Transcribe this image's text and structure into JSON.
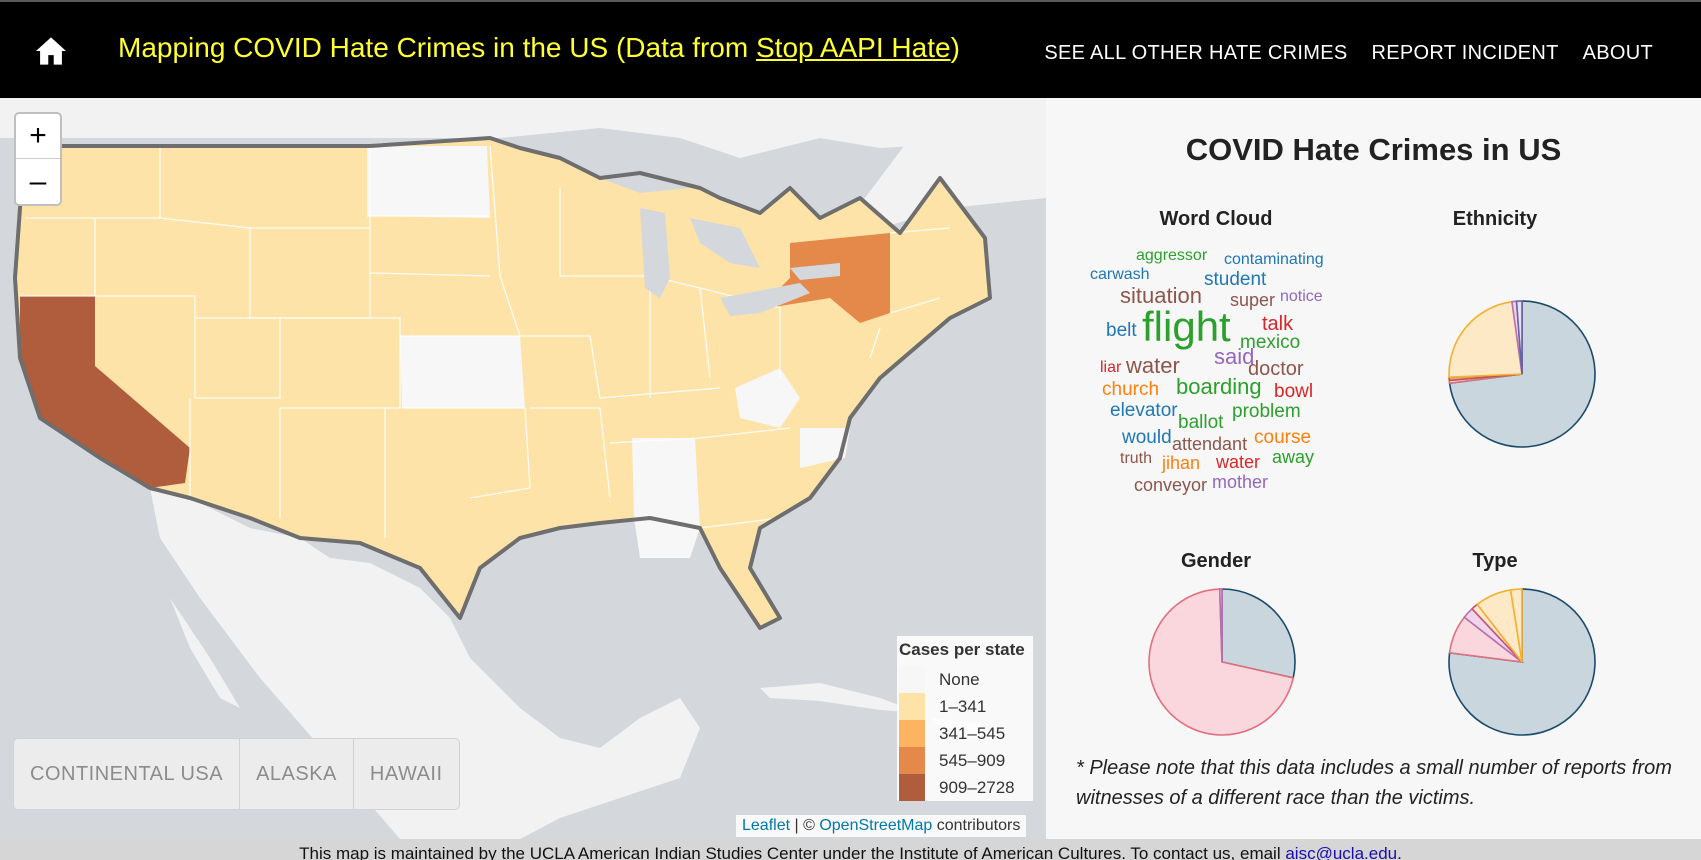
{
  "nav": {
    "title_prefix": "Mapping COVID Hate Crimes in the US (Data from ",
    "title_link": "Stop AAPI Hate",
    "title_suffix": ")",
    "links": [
      "SEE ALL OTHER HATE CRIMES",
      "REPORT INCIDENT",
      "ABOUT"
    ],
    "home_icon": "home-icon"
  },
  "map": {
    "zoom_in": "+",
    "zoom_out": "–",
    "regions": [
      "CONTINENTAL USA",
      "ALASKA",
      "HAWAII"
    ],
    "legend": {
      "title": "Cases per state",
      "items": [
        {
          "label": "None",
          "color": "#f7f7f7"
        },
        {
          "label": "1–341",
          "color": "#fde3a7"
        },
        {
          "label": "341–545",
          "color": "#fdb462"
        },
        {
          "label": "545–909",
          "color": "#e5894a"
        },
        {
          "label": "909–2728",
          "color": "#b05d3e"
        }
      ]
    },
    "attribution": {
      "leaflet": "Leaflet",
      "sep": " | © ",
      "osm": "OpenStreetMap",
      "suffix": " contributors"
    }
  },
  "panel": {
    "title": "COVID Hate Crimes in US",
    "wordcloud_title": "Word Cloud",
    "ethnicity_title": "Ethnicity",
    "gender_title": "Gender",
    "type_title": "Type",
    "words": [
      {
        "text": "aggressor",
        "color": "#2ca02c",
        "size": 16
      },
      {
        "text": "contaminating",
        "color": "#1f77b4",
        "size": 16
      },
      {
        "text": "carwash",
        "color": "#1f77b4",
        "size": 16
      },
      {
        "text": "student",
        "color": "#1f77b4",
        "size": 19
      },
      {
        "text": "situation",
        "color": "#8c564b",
        "size": 22
      },
      {
        "text": "super",
        "color": "#8c564b",
        "size": 18
      },
      {
        "text": "notice",
        "color": "#9467bd",
        "size": 16
      },
      {
        "text": "belt",
        "color": "#1f77b4",
        "size": 19
      },
      {
        "text": "flight",
        "color": "#2ca02c",
        "size": 42
      },
      {
        "text": "talk",
        "color": "#d62728",
        "size": 20
      },
      {
        "text": "mexico",
        "color": "#2ca02c",
        "size": 19
      },
      {
        "text": "said",
        "color": "#9467bd",
        "size": 22
      },
      {
        "text": "liar",
        "color": "#d62728",
        "size": 16
      },
      {
        "text": "water",
        "color": "#8c564b",
        "size": 22
      },
      {
        "text": "doctor",
        "color": "#8c564b",
        "size": 20
      },
      {
        "text": "church",
        "color": "#ff7f0e",
        "size": 19
      },
      {
        "text": "boarding",
        "color": "#2ca02c",
        "size": 22
      },
      {
        "text": "bowl",
        "color": "#d62728",
        "size": 19
      },
      {
        "text": "elevator",
        "color": "#1f77b4",
        "size": 19
      },
      {
        "text": "ballot",
        "color": "#2ca02c",
        "size": 19
      },
      {
        "text": "problem",
        "color": "#2ca02c",
        "size": 19
      },
      {
        "text": "would",
        "color": "#1f77b4",
        "size": 19
      },
      {
        "text": "attendant",
        "color": "#8c564b",
        "size": 18
      },
      {
        "text": "course",
        "color": "#ff7f0e",
        "size": 19
      },
      {
        "text": "truth",
        "color": "#8c564b",
        "size": 16
      },
      {
        "text": "jihan",
        "color": "#ff7f0e",
        "size": 18
      },
      {
        "text": "water",
        "color": "#d62728",
        "size": 18
      },
      {
        "text": "away",
        "color": "#2ca02c",
        "size": 18
      },
      {
        "text": "conveyor",
        "color": "#8c564b",
        "size": 18
      },
      {
        "text": "mother",
        "color": "#9467bd",
        "size": 18
      }
    ],
    "ethnicity": [
      {
        "value": 73,
        "fill": "#c9d6de",
        "stroke": "#1b4a6b"
      },
      {
        "value": 0.6,
        "fill": "#f9d7dc",
        "stroke": "#e0707e"
      },
      {
        "value": 0.7,
        "fill": "#e7a09a",
        "stroke": "#b85a4a"
      },
      {
        "value": 23.5,
        "fill": "#fde9c6",
        "stroke": "#f5b02e"
      },
      {
        "value": 1.0,
        "fill": "#efd4ea",
        "stroke": "#b670b0"
      },
      {
        "value": 1.2,
        "fill": "#e3e3f3",
        "stroke": "#6a62a6"
      }
    ],
    "gender": [
      {
        "value": 28.5,
        "fill": "#c9d6de",
        "stroke": "#1b4a6b"
      },
      {
        "value": 71,
        "fill": "#f9d7dc",
        "stroke": "#e0707e"
      },
      {
        "value": 0.5,
        "fill": "#efd4ea",
        "stroke": "#b670b0"
      }
    ],
    "type": [
      {
        "value": 77,
        "fill": "#c9d6de",
        "stroke": "#1b4a6b"
      },
      {
        "value": 8.5,
        "fill": "#f9d7dc",
        "stroke": "#e0707e"
      },
      {
        "value": 2.5,
        "fill": "#efd4ea",
        "stroke": "#b670b0"
      },
      {
        "value": 1.5,
        "fill": "#fde9c6",
        "stroke": "#c9507a"
      },
      {
        "value": 8,
        "fill": "#fde9c6",
        "stroke": "#f5b02e"
      },
      {
        "value": 2.5,
        "fill": "#fde9c6",
        "stroke": "#f5b02e"
      }
    ],
    "note": "* Please note that this data includes a small number of reports from witnesses of a different race than the victims."
  },
  "footer": {
    "text": "This map is maintained by the UCLA American Indian Studies Center under the Institute of American Cultures. To contact us, email ",
    "email": "aisc@ucla.edu",
    "end": "."
  }
}
